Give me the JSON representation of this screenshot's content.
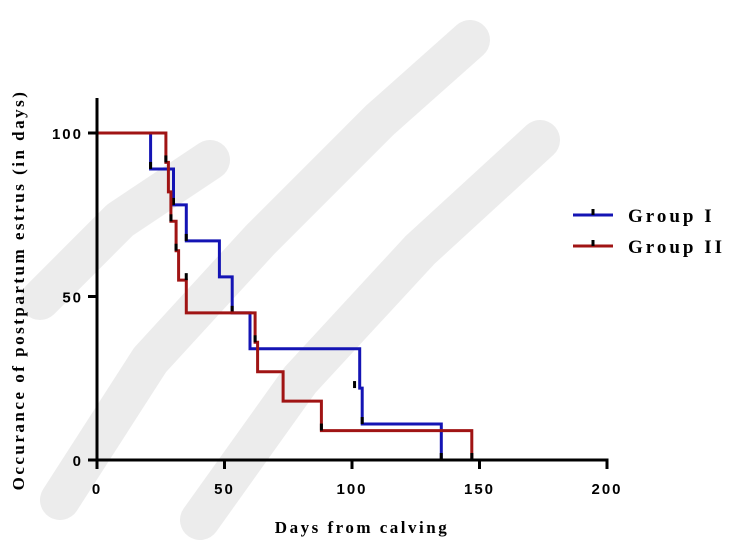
{
  "chart_data": {
    "type": "line",
    "step": true,
    "xlabel": "Days from calving",
    "ylabel": "Occurance of postpartum estrus (in days)",
    "xlim": [
      0,
      200
    ],
    "ylim": [
      0,
      100
    ],
    "x_ticks": [
      "0",
      "50",
      "100",
      "150",
      "200"
    ],
    "y_ticks": [
      "0",
      "50",
      "100"
    ],
    "legend_position": "right",
    "series": [
      {
        "name": "Group I",
        "color": "#1414b4",
        "x": [
          0,
          21,
          21,
          30,
          30,
          35,
          35,
          48,
          48,
          53,
          53,
          60,
          60,
          103,
          103,
          104,
          104,
          135,
          135
        ],
        "y": [
          100,
          100,
          89,
          89,
          78,
          78,
          67,
          67,
          56,
          56,
          45,
          45,
          34,
          34,
          22,
          22,
          11,
          11,
          0
        ],
        "censored": [
          {
            "x": 21,
            "y": 89
          },
          {
            "x": 30,
            "y": 78
          },
          {
            "x": 35,
            "y": 67
          },
          {
            "x": 53,
            "y": 45
          },
          {
            "x": 101,
            "y": 22
          },
          {
            "x": 104,
            "y": 11
          },
          {
            "x": 135,
            "y": 0
          }
        ]
      },
      {
        "name": "Group II",
        "color": "#a01414",
        "x": [
          0,
          27,
          27,
          28,
          28,
          29,
          29,
          31,
          31,
          32,
          32,
          35,
          35,
          37,
          37,
          62,
          62,
          63,
          63,
          65,
          65,
          73,
          73,
          88,
          88,
          147,
          147
        ],
        "y": [
          100,
          100,
          91,
          91,
          82,
          82,
          73,
          73,
          64,
          64,
          55,
          55,
          45,
          45,
          45,
          45,
          36,
          36,
          27,
          27,
          27,
          27,
          18,
          18,
          9,
          9,
          0
        ],
        "censored": [
          {
            "x": 27,
            "y": 91
          },
          {
            "x": 29,
            "y": 73
          },
          {
            "x": 31,
            "y": 64
          },
          {
            "x": 35,
            "y": 55
          },
          {
            "x": 62,
            "y": 36
          },
          {
            "x": 88,
            "y": 9
          },
          {
            "x": 147,
            "y": 0
          }
        ]
      }
    ]
  }
}
